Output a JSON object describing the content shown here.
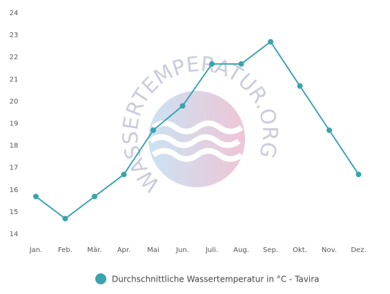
{
  "chart_data": {
    "type": "line",
    "watermark": "WASSERTEMPERATUR.ORG",
    "categories": [
      "Jan.",
      "Feb.",
      "Mär.",
      "Apr.",
      "Mai",
      "Jun.",
      "Juli.",
      "Aug.",
      "Sep.",
      "Okt.",
      "Nov.",
      "Dez."
    ],
    "series": [
      {
        "name": "Durchschnittliche Wassertemperatur in °C - Tavira",
        "color": "#3aa3ad",
        "values": [
          15.7,
          14.7,
          15.7,
          16.7,
          18.7,
          19.8,
          21.7,
          21.7,
          22.7,
          20.7,
          18.7,
          16.7
        ]
      }
    ],
    "ylim": [
      14,
      24
    ],
    "yticks": [
      14,
      15,
      16,
      17,
      18,
      19,
      20,
      21,
      22,
      23,
      24
    ],
    "grid": false,
    "legend": "bottom"
  }
}
